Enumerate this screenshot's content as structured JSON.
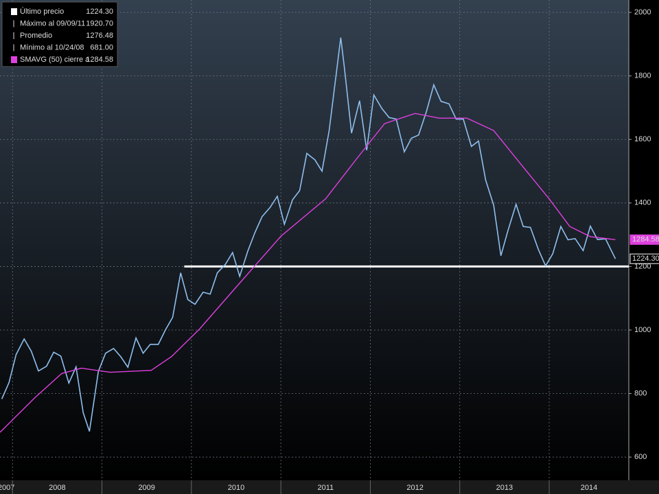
{
  "chart_data": {
    "type": "line",
    "xlim": [
      2007.86,
      2014.89
    ],
    "ylim": [
      527,
      2039
    ],
    "yticks": [
      600,
      800,
      1000,
      1200,
      1400,
      1600,
      1800,
      2000
    ],
    "xticks": [
      {
        "value": 2007,
        "label": "2007"
      },
      {
        "value": 2008,
        "label": "2008"
      },
      {
        "value": 2009,
        "label": "2009"
      },
      {
        "value": 2010,
        "label": "2010"
      },
      {
        "value": 2011,
        "label": "2011"
      },
      {
        "value": 2012,
        "label": "2012"
      },
      {
        "value": 2013,
        "label": "2013"
      },
      {
        "value": 2014,
        "label": "2014"
      }
    ],
    "grid": true,
    "series": [
      {
        "name": "Último precio",
        "color": "#8fbfee",
        "x": [
          2007.88,
          2007.96,
          2008.04,
          2008.13,
          2008.21,
          2008.29,
          2008.38,
          2008.46,
          2008.54,
          2008.63,
          2008.71,
          2008.79,
          2008.86,
          2008.96,
          2009.04,
          2009.13,
          2009.21,
          2009.29,
          2009.38,
          2009.46,
          2009.54,
          2009.63,
          2009.71,
          2009.79,
          2009.88,
          2009.96,
          2010.04,
          2010.13,
          2010.21,
          2010.29,
          2010.38,
          2010.46,
          2010.54,
          2010.63,
          2010.71,
          2010.79,
          2010.88,
          2010.96,
          2011.04,
          2011.13,
          2011.21,
          2011.29,
          2011.38,
          2011.46,
          2011.54,
          2011.67,
          2011.71,
          2011.79,
          2011.88,
          2011.96,
          2012.04,
          2012.13,
          2012.21,
          2012.29,
          2012.38,
          2012.46,
          2012.54,
          2012.63,
          2012.71,
          2012.79,
          2012.88,
          2012.96,
          2013.04,
          2013.13,
          2013.21,
          2013.29,
          2013.38,
          2013.46,
          2013.54,
          2013.63,
          2013.71,
          2013.79,
          2013.88,
          2013.96,
          2014.04,
          2014.13,
          2014.21,
          2014.29,
          2014.38,
          2014.46,
          2014.54,
          2014.63,
          2014.74
        ],
        "values": [
          783,
          834,
          923,
          972,
          933,
          871,
          886,
          930,
          918,
          833,
          884,
          740,
          681,
          870,
          927,
          942,
          916,
          883,
          975,
          927,
          955,
          955,
          1001,
          1040,
          1180,
          1096,
          1081,
          1119,
          1113,
          1180,
          1207,
          1244,
          1169,
          1248,
          1307,
          1357,
          1386,
          1421,
          1333,
          1410,
          1439,
          1556,
          1536,
          1500,
          1628,
          1920.7,
          1826,
          1620,
          1722,
          1566,
          1740,
          1697,
          1669,
          1664,
          1561,
          1604,
          1614,
          1690,
          1772,
          1720,
          1712,
          1664,
          1664,
          1578,
          1595,
          1472,
          1393,
          1234,
          1314,
          1396,
          1326,
          1323,
          1253,
          1202,
          1240,
          1326,
          1284,
          1288,
          1250,
          1327,
          1285,
          1287,
          1224.3
        ]
      },
      {
        "name": "SMAVG (50) cierre a",
        "color": "#e040e0",
        "x": [
          2007.86,
          2008.25,
          2008.55,
          2008.77,
          2009.09,
          2009.55,
          2009.78,
          2010.09,
          2010.5,
          2011.0,
          2011.5,
          2011.85,
          2012.16,
          2012.5,
          2012.77,
          2013.08,
          2013.38,
          2013.69,
          2014.0,
          2014.23,
          2014.46,
          2014.74
        ],
        "values": [
          678,
          787,
          863,
          880,
          867,
          873,
          917,
          1003,
          1135,
          1295,
          1413,
          1540,
          1650,
          1682,
          1667,
          1667,
          1628,
          1520,
          1413,
          1326,
          1294,
          1284.58
        ]
      }
    ],
    "reference_line": {
      "y": 1200,
      "x_start": 2009.92
    },
    "legend": [
      {
        "name": "Último precio",
        "value": "1224.30"
      },
      {
        "name": "Máximo al 09/09/11",
        "value": "1920.70"
      },
      {
        "name": "Promedio",
        "value": "1276.48"
      },
      {
        "name": "Mínimo al 10/24/08",
        "value": "681.00"
      },
      {
        "name": "SMAVG (50) cierre a",
        "value": "1284.58"
      }
    ],
    "badges": [
      {
        "label": "1284.58",
        "y": 1284.58,
        "color": "#e040e0"
      },
      {
        "label": "1224.30",
        "y": 1224.3,
        "color": "#ffffff"
      }
    ]
  }
}
